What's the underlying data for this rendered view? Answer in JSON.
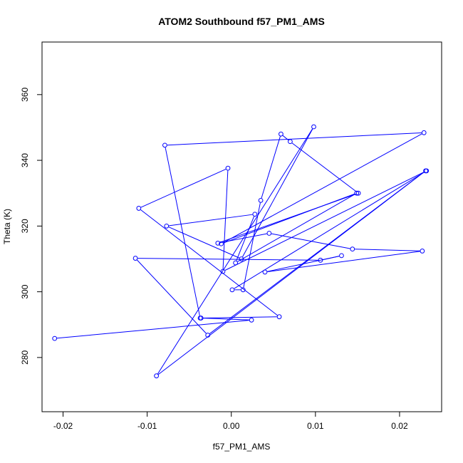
{
  "chart_data": {
    "type": "line",
    "title": "ATOM2 Southbound f57_PM1_AMS",
    "xlabel": "f57_PM1_AMS",
    "ylabel": "Theta (K)",
    "xlim": [
      -0.0225,
      0.025
    ],
    "ylim": [
      263.5,
      376
    ],
    "xticks": [
      -0.02,
      -0.01,
      0.0,
      0.01,
      0.02
    ],
    "xtick_labels": [
      "-0.02",
      "-0.01",
      "0.00",
      "0.01",
      "0.02"
    ],
    "yticks": [
      280,
      300,
      320,
      340,
      360
    ],
    "ytick_labels": [
      "280",
      "300",
      "320",
      "340",
      "360"
    ],
    "grid": false,
    "legend": "none",
    "series": [
      {
        "color": "#0000ff",
        "marker": "open-circle",
        "points": [
          {
            "x": -0.021,
            "y": 285.8
          },
          {
            "x": 0.0024,
            "y": 291.4
          },
          {
            "x": -0.0036,
            "y": 292.0
          },
          {
            "x": 0.0057,
            "y": 292.4
          },
          {
            "x": -0.011,
            "y": 325.4
          },
          {
            "x": -0.0004,
            "y": 337.6
          },
          {
            "x": -0.001,
            "y": 306.2
          },
          {
            "x": 0.0232,
            "y": 336.8
          },
          {
            "x": 0.0001,
            "y": 300.6
          },
          {
            "x": 0.0014,
            "y": 300.6
          },
          {
            "x": 0.0035,
            "y": 327.8
          },
          {
            "x": 0.0059,
            "y": 348.0
          },
          {
            "x": 0.007,
            "y": 345.7
          },
          {
            "x": 0.0151,
            "y": 330.0
          },
          {
            "x": -0.0016,
            "y": 314.8
          },
          {
            "x": 0.0045,
            "y": 317.8
          },
          {
            "x": 0.0144,
            "y": 313.0
          },
          {
            "x": 0.0227,
            "y": 312.4
          },
          {
            "x": 0.004,
            "y": 306.0
          },
          {
            "x": 0.0131,
            "y": 311.0
          },
          {
            "x": 0.0106,
            "y": 309.6
          },
          {
            "x": -0.0114,
            "y": 310.2
          },
          {
            "x": -0.0028,
            "y": 286.8
          },
          {
            "x": 0.0231,
            "y": 336.8
          },
          {
            "x": -0.0089,
            "y": 274.4
          },
          {
            "x": 0.0098,
            "y": 350.2
          },
          {
            "x": 0.0012,
            "y": 310.0
          },
          {
            "x": -0.0077,
            "y": 320.0
          },
          {
            "x": 0.0028,
            "y": 323.6
          },
          {
            "x": 0.0005,
            "y": 308.8
          },
          {
            "x": 0.0149,
            "y": 330.0
          },
          {
            "x": -0.0012,
            "y": 314.6
          },
          {
            "x": 0.0229,
            "y": 348.4
          },
          {
            "x": -0.0079,
            "y": 344.6
          },
          {
            "x": -0.0037,
            "y": 292.0
          }
        ]
      }
    ]
  }
}
